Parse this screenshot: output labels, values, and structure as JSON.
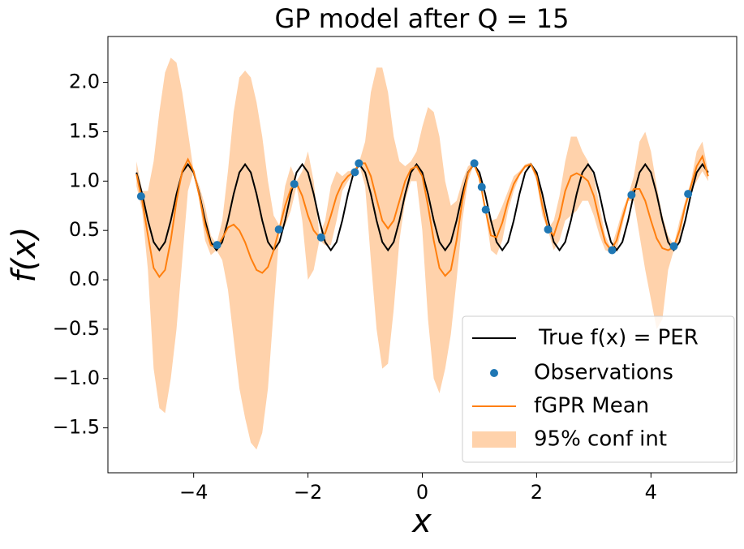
{
  "chart_data": {
    "type": "line",
    "title": "GP model after Q = 15",
    "xlabel": "x",
    "ylabel": "f(x)",
    "xlim": [
      -5.5,
      5.5
    ],
    "ylim": [
      -1.955,
      2.465
    ],
    "xticks": [
      {
        "value": -4,
        "label": "−4"
      },
      {
        "value": -2,
        "label": "−2"
      },
      0,
      2,
      4
    ],
    "yticks": [
      {
        "value": -1.5,
        "label": "−1.5"
      },
      {
        "value": -1.0,
        "label": "−1.0"
      },
      {
        "value": -0.5,
        "label": "−0.5"
      },
      {
        "value": 0,
        "label": "0.0"
      },
      0.5,
      {
        "value": 1.0,
        "label": "1.0"
      },
      1.5,
      {
        "value": 2.0,
        "label": "2.0"
      }
    ],
    "legend": "lower right",
    "x": [
      -5.0,
      -4.9,
      -4.8,
      -4.7,
      -4.6,
      -4.5,
      -4.4,
      -4.3,
      -4.2,
      -4.1,
      -4.0,
      -3.9,
      -3.8,
      -3.7,
      -3.6,
      -3.5,
      -3.4,
      -3.3,
      -3.2,
      -3.1,
      -3.0,
      -2.9,
      -2.8,
      -2.7,
      -2.6,
      -2.5,
      -2.4,
      -2.3,
      -2.2,
      -2.1,
      -2.0,
      -1.9,
      -1.8,
      -1.7,
      -1.6,
      -1.5,
      -1.4,
      -1.3,
      -1.2,
      -1.1,
      -1.0,
      -0.9,
      -0.8,
      -0.7,
      -0.6,
      -0.5,
      -0.4,
      -0.3,
      -0.2,
      -0.1,
      0.0,
      0.1,
      0.2,
      0.3,
      0.4,
      0.5,
      0.6,
      0.7,
      0.8,
      0.9,
      1.0,
      1.1,
      1.2,
      1.3,
      1.4,
      1.5,
      1.6,
      1.7,
      1.8,
      1.9,
      2.0,
      2.1,
      2.2,
      2.3,
      2.4,
      2.5,
      2.6,
      2.7,
      2.8,
      2.9,
      3.0,
      3.1,
      3.2,
      3.3,
      3.4,
      3.5,
      3.6,
      3.7,
      3.8,
      3.9,
      4.0,
      4.1,
      4.2,
      4.3,
      4.4,
      4.5,
      4.6,
      4.7,
      4.8,
      4.9,
      5.0
    ],
    "band": {
      "name": "95% conf int",
      "color": "#ffd2ab",
      "upper": [
        1.2,
        0.9,
        0.9,
        1.2,
        1.7,
        2.1,
        2.25,
        2.2,
        1.9,
        1.5,
        1.1,
        0.95,
        0.75,
        0.45,
        0.36,
        0.6,
        1.1,
        1.7,
        2.05,
        2.12,
        2.05,
        1.8,
        1.45,
        1.0,
        0.65,
        0.55,
        0.95,
        1.15,
        1.0,
        1.1,
        1.3,
        1.0,
        0.45,
        0.6,
        0.95,
        1.1,
        1.05,
        1.1,
        1.1,
        1.2,
        1.4,
        1.9,
        2.15,
        2.15,
        1.9,
        1.45,
        1.2,
        1.15,
        1.2,
        1.3,
        1.55,
        1.75,
        1.7,
        1.45,
        1.0,
        0.75,
        0.8,
        1.0,
        1.15,
        1.19,
        1.05,
        0.73,
        0.6,
        0.62,
        0.75,
        0.9,
        1.05,
        1.1,
        1.17,
        1.19,
        1.1,
        0.85,
        0.52,
        0.6,
        0.85,
        1.2,
        1.45,
        1.45,
        1.3,
        1.2,
        1.05,
        0.75,
        0.45,
        0.32,
        0.5,
        0.7,
        0.85,
        1.05,
        1.4,
        1.5,
        1.3,
        0.95,
        0.65,
        0.45,
        0.35,
        0.6,
        0.8,
        1.0,
        1.3,
        1.4,
        1.1
      ],
      "lower": [
        0.95,
        0.7,
        0.1,
        -0.9,
        -1.3,
        -1.35,
        -1.0,
        -0.5,
        0.2,
        0.9,
        1.1,
        0.8,
        0.4,
        0.25,
        0.3,
        0.2,
        -0.1,
        -0.6,
        -1.1,
        -1.4,
        -1.65,
        -1.72,
        -1.55,
        -1.1,
        -0.3,
        0.48,
        0.55,
        0.7,
        0.95,
        0.6,
        0.0,
        0.1,
        0.4,
        0.35,
        0.35,
        0.6,
        0.9,
        1.0,
        1.08,
        1.16,
        0.95,
        0.2,
        -0.5,
        -0.9,
        -0.85,
        -0.3,
        0.4,
        0.8,
        1.0,
        1.0,
        0.5,
        -0.4,
        -1.0,
        -1.15,
        -0.9,
        -0.55,
        0.0,
        0.6,
        1.0,
        1.17,
        1.0,
        0.7,
        0.3,
        0.25,
        0.4,
        0.7,
        0.9,
        1.05,
        1.13,
        1.15,
        1.0,
        0.65,
        0.5,
        0.3,
        0.4,
        0.6,
        0.65,
        0.7,
        0.8,
        0.8,
        0.65,
        0.45,
        0.3,
        0.28,
        0.3,
        0.55,
        0.8,
        0.8,
        0.45,
        0.1,
        -0.2,
        -0.5,
        -0.4,
        0.1,
        0.3,
        0.4,
        0.7,
        0.9,
        1.0,
        1.1,
        1.0
      ]
    },
    "series": [
      {
        "name": "True f(x) = PER",
        "color": "#000000",
        "values": [
          1.087,
          0.869,
          0.601,
          0.383,
          0.3,
          0.383,
          0.601,
          0.869,
          1.087,
          1.17,
          1.087,
          0.869,
          0.601,
          0.383,
          0.3,
          0.383,
          0.601,
          0.869,
          1.087,
          1.17,
          1.087,
          0.869,
          0.601,
          0.383,
          0.3,
          0.383,
          0.601,
          0.869,
          1.087,
          1.17,
          1.087,
          0.869,
          0.601,
          0.383,
          0.3,
          0.383,
          0.601,
          0.869,
          1.087,
          1.17,
          1.087,
          0.869,
          0.601,
          0.383,
          0.3,
          0.383,
          0.601,
          0.869,
          1.087,
          1.17,
          1.087,
          0.869,
          0.601,
          0.383,
          0.3,
          0.383,
          0.601,
          0.869,
          1.087,
          1.17,
          1.087,
          0.869,
          0.601,
          0.383,
          0.3,
          0.383,
          0.601,
          0.869,
          1.087,
          1.17,
          1.087,
          0.869,
          0.601,
          0.383,
          0.3,
          0.383,
          0.601,
          0.869,
          1.087,
          1.17,
          1.087,
          0.869,
          0.601,
          0.383,
          0.3,
          0.383,
          0.601,
          0.869,
          1.087,
          1.17,
          1.087,
          0.869,
          0.601,
          0.383,
          0.3,
          0.383,
          0.601,
          0.869,
          1.087,
          1.17,
          1.087
        ]
      },
      {
        "name": "fGPR Mean",
        "color": "#ff7f0e",
        "values": [
          1.07,
          0.8,
          0.45,
          0.12,
          0.03,
          0.1,
          0.4,
          0.8,
          1.1,
          1.22,
          1.1,
          0.85,
          0.55,
          0.35,
          0.33,
          0.42,
          0.53,
          0.56,
          0.5,
          0.38,
          0.22,
          0.1,
          0.07,
          0.13,
          0.3,
          0.52,
          0.75,
          0.92,
          0.98,
          0.85,
          0.65,
          0.5,
          0.43,
          0.47,
          0.65,
          0.85,
          0.98,
          1.05,
          1.09,
          1.18,
          1.18,
          1.05,
          0.82,
          0.6,
          0.52,
          0.6,
          0.8,
          1.0,
          1.12,
          1.15,
          1.05,
          0.75,
          0.4,
          0.12,
          0.04,
          0.1,
          0.4,
          0.8,
          1.08,
          1.18,
          1.03,
          0.72,
          0.45,
          0.43,
          0.58,
          0.8,
          0.97,
          1.07,
          1.15,
          1.17,
          1.05,
          0.75,
          0.51,
          0.45,
          0.63,
          0.9,
          1.05,
          1.08,
          1.05,
          1.0,
          0.85,
          0.6,
          0.38,
          0.3,
          0.4,
          0.62,
          0.82,
          0.92,
          0.92,
          0.8,
          0.6,
          0.42,
          0.32,
          0.3,
          0.33,
          0.5,
          0.75,
          0.95,
          1.15,
          1.25,
          1.05
        ]
      }
    ],
    "observations": {
      "name": "Observations",
      "color": "#1f77b4",
      "x": [
        -4.92,
        -3.59,
        -2.51,
        -2.24,
        -1.77,
        -1.18,
        -1.11,
        0.91,
        1.04,
        1.11,
        2.2,
        3.32,
        3.66,
        4.4,
        4.65
      ],
      "values": [
        0.846,
        0.353,
        0.51,
        0.97,
        0.43,
        1.09,
        1.18,
        1.18,
        0.94,
        0.71,
        0.51,
        0.3,
        0.86,
        0.34,
        0.87
      ]
    }
  }
}
